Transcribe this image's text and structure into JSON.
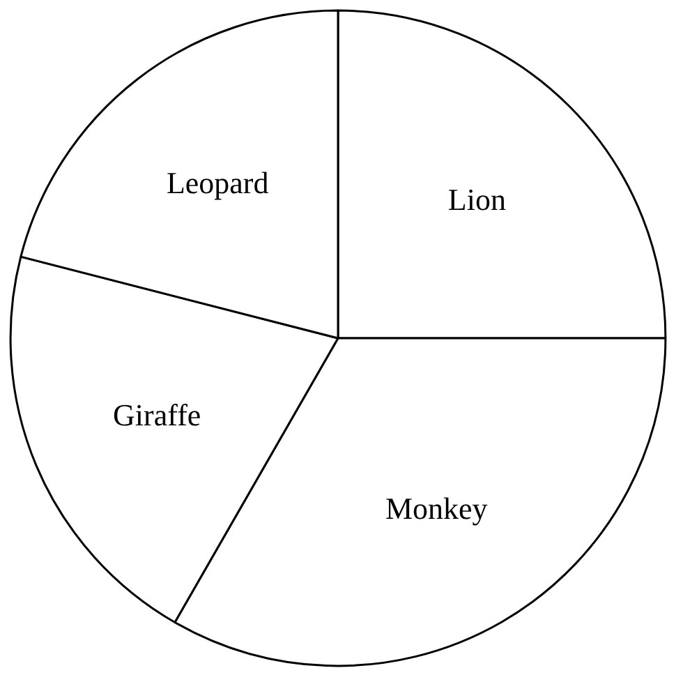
{
  "chart_data": {
    "type": "pie",
    "categories": [
      "Lion",
      "Monkey",
      "Giraffe",
      "Leopard"
    ],
    "values": [
      25,
      33.3,
      20.7,
      21
    ],
    "colors": [
      "#ffffff",
      "#ffffff",
      "#ffffff",
      "#ffffff"
    ],
    "legend": false
  }
}
